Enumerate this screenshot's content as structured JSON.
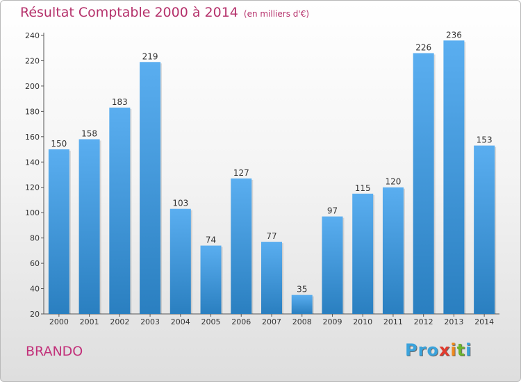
{
  "title": "Résultat Comptable 2000 à 2014",
  "subtitle": "(en milliers d'€)",
  "commune": "BRANDO",
  "logo": {
    "letters": [
      "P",
      "r",
      "o",
      "x",
      "i",
      "t",
      "i"
    ],
    "colors": [
      "#3aa3dc",
      "#3aa3dc",
      "#3aa3dc",
      "#e23b2e",
      "#f08a1c",
      "#6cb52d",
      "#3aa3dc"
    ]
  },
  "colors": {
    "bar_top": "#5aaef0",
    "bar_bottom": "#2a7fc0",
    "title": "#b5316b",
    "commune": "#c2317a"
  },
  "chart_data": {
    "type": "bar",
    "title": "Résultat Comptable 2000 à 2014",
    "subtitle": "(en milliers d'€)",
    "xlabel": "",
    "ylabel": "",
    "categories": [
      "2000",
      "2001",
      "2002",
      "2003",
      "2004",
      "2005",
      "2006",
      "2007",
      "2008",
      "2009",
      "2010",
      "2011",
      "2012",
      "2013",
      "2014"
    ],
    "values": [
      150,
      158,
      183,
      219,
      103,
      74,
      127,
      77,
      35,
      97,
      115,
      120,
      226,
      236,
      153
    ],
    "ylim": [
      20,
      240
    ],
    "yticks": [
      20,
      40,
      60,
      80,
      100,
      120,
      140,
      160,
      180,
      200,
      220,
      240
    ],
    "grid": false,
    "legend": "none"
  }
}
